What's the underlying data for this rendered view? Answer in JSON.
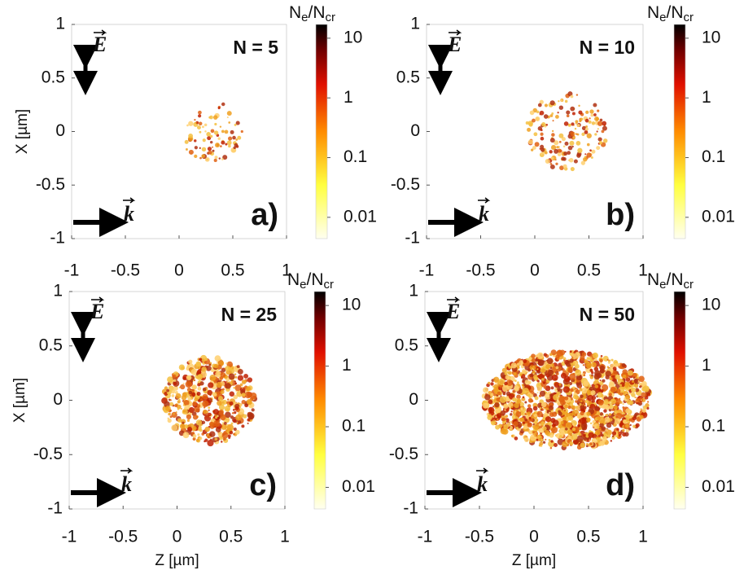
{
  "chart_data": [
    {
      "type": "image",
      "title": "N = 5",
      "panel_label": "a)",
      "ylabel": "X [µm]",
      "xlim": [
        -1,
        1
      ],
      "ylim": [
        -1,
        1
      ],
      "xticks": [
        -1,
        -0.5,
        0,
        0.5,
        1
      ],
      "yticks": [
        -1,
        -0.5,
        0,
        0.5,
        1
      ],
      "field_label": "E",
      "wave_label": "k",
      "colorbar": {
        "label": [
          "N",
          "e",
          "/N",
          "cr"
        ],
        "log": true,
        "clim": [
          0.0044,
          17
        ],
        "ticks": [
          0.01,
          0.1,
          1,
          10
        ]
      }
    },
    {
      "type": "image",
      "title": "N = 10",
      "panel_label": "b)",
      "xlim": [
        -1,
        1
      ],
      "ylim": [
        -1,
        1
      ],
      "xticks": [
        -1,
        -0.5,
        0,
        0.5,
        1
      ],
      "yticks": [
        -1,
        -0.5,
        0,
        0.5,
        1
      ],
      "field_label": "E",
      "wave_label": "k",
      "colorbar": {
        "label": [
          "N",
          "e",
          "/N",
          "cr"
        ],
        "log": true,
        "clim": [
          0.0044,
          17
        ],
        "ticks": [
          0.01,
          0.1,
          1,
          10
        ]
      }
    },
    {
      "type": "image",
      "title": "N = 25",
      "panel_label": "c)",
      "ylabel": "X [µm]",
      "xlabel": "Z [µm]",
      "xlim": [
        -1,
        1
      ],
      "ylim": [
        -1,
        1
      ],
      "xticks": [
        -1,
        -0.5,
        0,
        0.5,
        1
      ],
      "yticks": [
        -1,
        -0.5,
        0,
        0.5,
        1
      ],
      "field_label": "E",
      "wave_label": "k",
      "colorbar": {
        "label": [
          "N",
          "e",
          "/N",
          "cr"
        ],
        "log": true,
        "clim": [
          0.0044,
          17
        ],
        "ticks": [
          0.01,
          0.1,
          1,
          10
        ]
      }
    },
    {
      "type": "image",
      "title": "N = 50",
      "panel_label": "d)",
      "xlabel": "Z [µm]",
      "xlim": [
        -1,
        1
      ],
      "ylim": [
        -1,
        1
      ],
      "xticks": [
        -1,
        -0.5,
        0,
        0.5,
        1
      ],
      "yticks": [
        -1,
        -0.5,
        0,
        0.5,
        1
      ],
      "field_label": "E",
      "wave_label": "k",
      "colorbar": {
        "label": [
          "N",
          "e",
          "/N",
          "cr"
        ],
        "log": true,
        "clim": [
          0.0044,
          17
        ],
        "ticks": [
          0.01,
          0.1,
          1,
          10
        ]
      }
    }
  ]
}
